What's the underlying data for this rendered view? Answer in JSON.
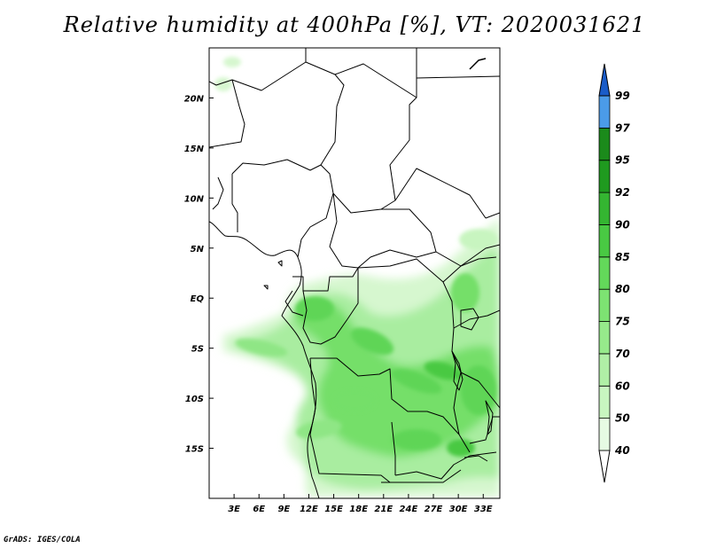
{
  "title": "Relative humidity at 400hPa [%], VT: 2020031621",
  "credit": "GrADS: IGES/COLA",
  "map": {
    "lon_range": [
      0,
      35
    ],
    "lat_range": [
      -20,
      25
    ],
    "x_ticks": [
      {
        "lon": 3,
        "label": "3E"
      },
      {
        "lon": 6,
        "label": "6E"
      },
      {
        "lon": 9,
        "label": "9E"
      },
      {
        "lon": 12,
        "label": "12E"
      },
      {
        "lon": 15,
        "label": "15E"
      },
      {
        "lon": 18,
        "label": "18E"
      },
      {
        "lon": 21,
        "label": "21E"
      },
      {
        "lon": 24,
        "label": "24E"
      },
      {
        "lon": 27,
        "label": "27E"
      },
      {
        "lon": 30,
        "label": "30E"
      },
      {
        "lon": 33,
        "label": "33E"
      }
    ],
    "y_ticks": [
      {
        "lat": 20,
        "label": "20N"
      },
      {
        "lat": 15,
        "label": "15N"
      },
      {
        "lat": 10,
        "label": "10N"
      },
      {
        "lat": 5,
        "label": "5N"
      },
      {
        "lat": 0,
        "label": "EQ"
      },
      {
        "lat": -5,
        "label": "5S"
      },
      {
        "lat": -10,
        "label": "10S"
      },
      {
        "lat": -15,
        "label": "15S"
      }
    ]
  },
  "colorbar": {
    "levels": [
      {
        "label": "40",
        "color": "#e6fbe3"
      },
      {
        "label": "50",
        "color": "#c8f5c0"
      },
      {
        "label": "60",
        "color": "#b0efa6"
      },
      {
        "label": "70",
        "color": "#96e98b"
      },
      {
        "label": "75",
        "color": "#7de272"
      },
      {
        "label": "80",
        "color": "#63d85a"
      },
      {
        "label": "85",
        "color": "#49c943"
      },
      {
        "label": "90",
        "color": "#34b531"
      },
      {
        "label": "92",
        "color": "#1f9a1f"
      },
      {
        "label": "95",
        "color": "#1b8a1b"
      },
      {
        "label": "97",
        "color": "#4b9be8"
      },
      {
        "label": "99",
        "color": "#2a74d9"
      }
    ],
    "below_color": "#ffffff",
    "above_color": "#1a5cc8"
  }
}
